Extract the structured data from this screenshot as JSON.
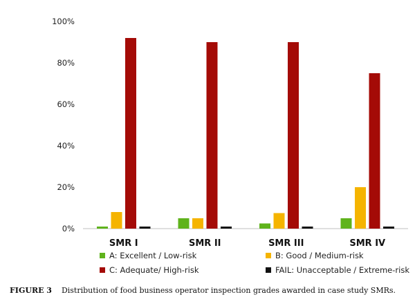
{
  "chart_data": {
    "type": "bar",
    "categories": [
      "SMR I",
      "SMR II",
      "SMR III",
      "SMR IV"
    ],
    "series": [
      {
        "name": "A: Excellent / Low-risk",
        "color": "#5fb31c",
        "values": [
          1,
          5,
          2.5,
          5
        ]
      },
      {
        "name": "B: Good / Medium-risk",
        "color": "#f5b400",
        "values": [
          8,
          5,
          7.5,
          20
        ]
      },
      {
        "name": "C: Adequate/ High-risk",
        "color": "#a40b07",
        "values": [
          92,
          90,
          90,
          75
        ]
      },
      {
        "name": "FAIL: Unacceptable / Extreme-risk",
        "color": "#111111",
        "values": [
          1,
          1,
          1,
          1
        ]
      }
    ],
    "y_ticks": [
      "0%",
      "20%",
      "40%",
      "60%",
      "80%",
      "100%"
    ],
    "ylim": [
      0,
      100
    ],
    "grid": false,
    "legend_position": "bottom"
  },
  "caption": {
    "label": "FIGURE 3",
    "text": "Distribution of food business operator inspection grades awarded in case study SMRs."
  }
}
